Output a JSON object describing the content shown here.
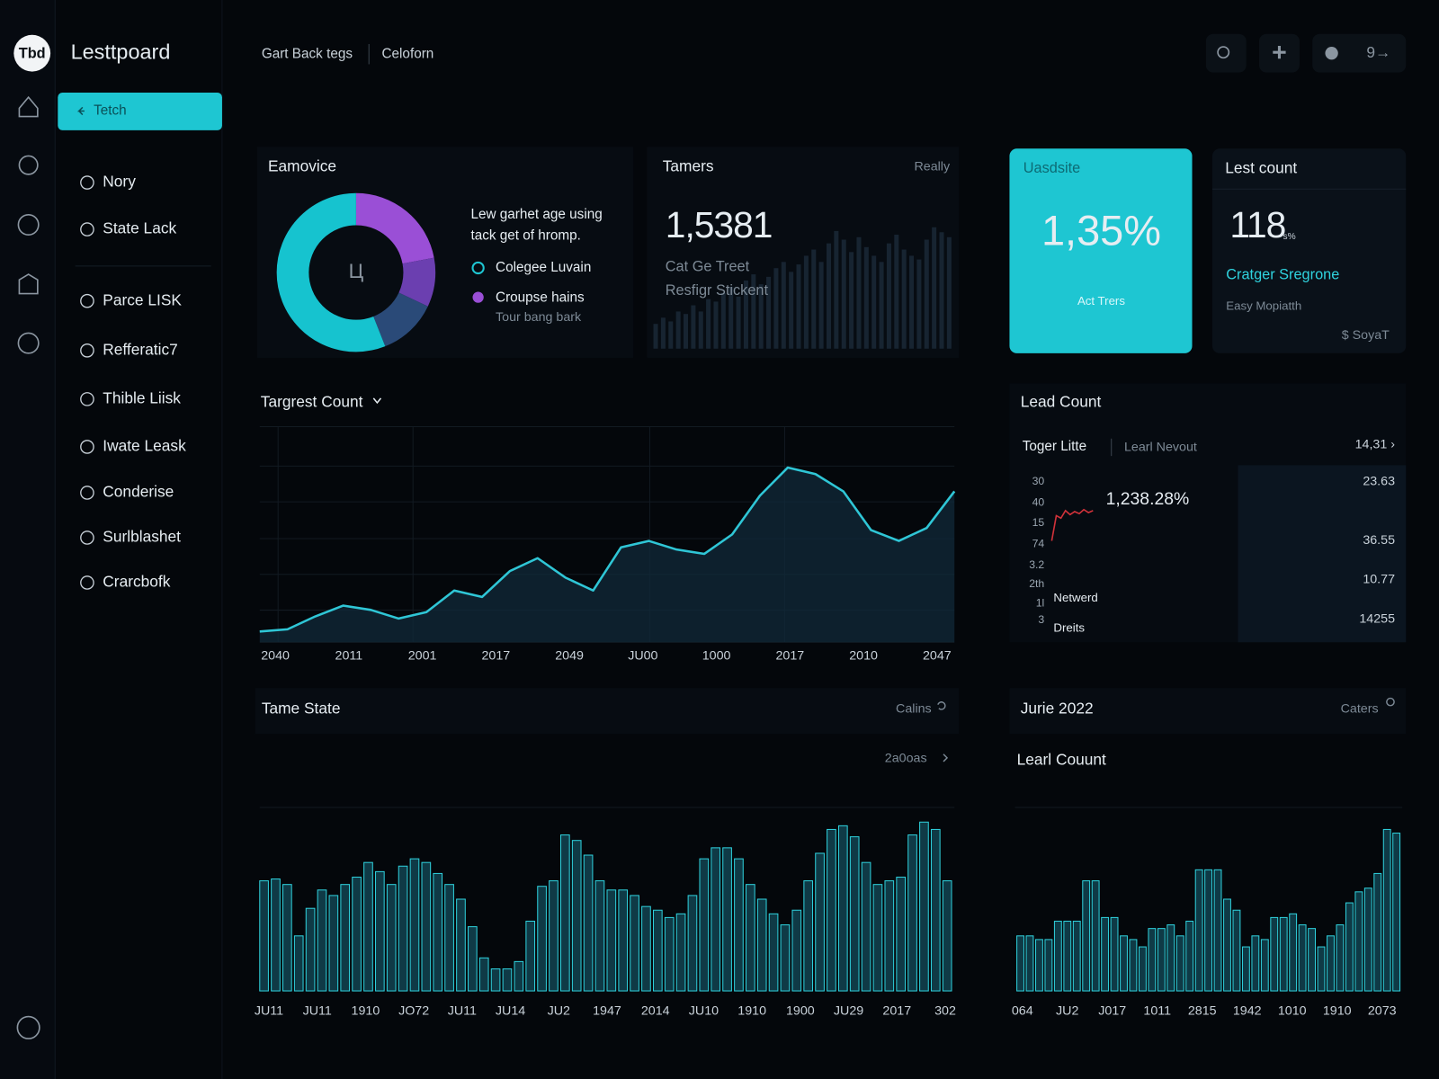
{
  "sidebar": {
    "logo": "Tbd",
    "brand": "Lesttpoard",
    "button": "Tetch",
    "nav": [
      "Nory",
      "State Lack",
      "Parce LISK",
      "Refferatic7",
      "Thible Liisk",
      "Iwate Leask",
      "Conderise",
      "Surlblashet",
      "Crarcbofk"
    ]
  },
  "header": {
    "breadcrumbs": [
      "Gart Back tegs",
      "Celoforn"
    ],
    "badge": "9→"
  },
  "donut_card": {
    "title": "Eamovice",
    "center": "Ц",
    "text": [
      "Lew garhet age using",
      "tack get of hromp."
    ],
    "legend": [
      {
        "name": "Colegee Luvain",
        "color": "#1ec6d2"
      },
      {
        "name": "Croupse hains",
        "color": "#9a4fd6",
        "note": "Tour bang bark"
      }
    ],
    "chart": {
      "type": "pie",
      "values": [
        22,
        10,
        12,
        56
      ],
      "colors": [
        "#9a4fd6",
        "#6b3fb0",
        "#2a4a78",
        "#16c3cf"
      ]
    }
  },
  "tamers_card": {
    "title": "Tamers",
    "action": "Really",
    "value": "1,5381",
    "lines": [
      "Cat Ge Treet",
      "Resfigr Stickent"
    ],
    "chart": {
      "type": "bar",
      "ylim": [
        0,
        100
      ],
      "values": [
        20,
        25,
        22,
        30,
        28,
        35,
        30,
        40,
        38,
        45,
        50,
        42,
        55,
        60,
        52,
        58,
        65,
        70,
        62,
        68,
        75,
        80,
        70,
        85,
        95,
        88,
        78,
        90,
        82,
        75,
        70,
        85,
        92,
        80,
        75,
        72,
        88,
        98,
        94,
        90
      ]
    }
  },
  "usage_card": {
    "title": "Uasdsite",
    "value": "1,35%",
    "caption": "Act Trers"
  },
  "lest_card": {
    "title": "Lest count",
    "value": "118",
    "unit": "s%",
    "link": "Cratger Sregrone",
    "note": "Easy Mopiatth",
    "footer": "$ SoyaT"
  },
  "target_chart": {
    "type": "area",
    "title": "Targrest Count",
    "ylim": [
      0,
      100
    ],
    "values": [
      5,
      6,
      12,
      17,
      15,
      11,
      14,
      24,
      21,
      33,
      39,
      30,
      24,
      44,
      47,
      43,
      41,
      50,
      68,
      81,
      78,
      70,
      52,
      47,
      53,
      70
    ],
    "x_labels": [
      "2040",
      "2011",
      "2001",
      "2017",
      "2049",
      "JU00",
      "1000",
      "2017",
      "2010",
      "2047"
    ],
    "color": "#2fc6d6"
  },
  "lead_card": {
    "title": "Lead Count",
    "tabs": [
      "Toger Litte",
      "Learl Nevout"
    ],
    "range": "14,31 ›",
    "axis_labels": [
      "30",
      "40",
      "15",
      "74",
      "3.2",
      "2th",
      "1l",
      "3"
    ],
    "headline": "1,238.28%",
    "rows": [
      "Netwerd",
      "Dreits"
    ],
    "side_values": [
      "23.63",
      "36.55",
      "10.77",
      "14255"
    ],
    "spark": {
      "type": "line",
      "ylim": [
        0,
        100
      ],
      "values": [
        10,
        60,
        55,
        70,
        62,
        68,
        64,
        72,
        66,
        70
      ],
      "color": "#d0323a"
    }
  },
  "state_chart": {
    "type": "bar",
    "title": "Tame State",
    "action": "Calins",
    "filter": "2a0oas",
    "ylim": [
      0,
      100
    ],
    "color": "#2fd0dc",
    "values": [
      60,
      61,
      58,
      30,
      45,
      55,
      52,
      58,
      62,
      70,
      65,
      58,
      68,
      72,
      70,
      64,
      58,
      50,
      35,
      18,
      12,
      12,
      16,
      38,
      57,
      60,
      85,
      82,
      74,
      60,
      55,
      55,
      52,
      46,
      44,
      40,
      42,
      52,
      72,
      78,
      78,
      72,
      58,
      50,
      42,
      36,
      44,
      60,
      75,
      88,
      90,
      84,
      70,
      58,
      60,
      62,
      85,
      92,
      88,
      60
    ],
    "x_labels": [
      "JU11",
      "JU11",
      "1910",
      "JO72",
      "JU11",
      "JU14",
      "JU2",
      "1947",
      "2014",
      "JU10",
      "1910",
      "1900",
      "JU29",
      "2017",
      "302"
    ]
  },
  "june_chart": {
    "type": "bar",
    "header": "Jurie 2022",
    "action": "Caters",
    "title": "Learl Couunt",
    "ylim": [
      0,
      100
    ],
    "color": "#2fd0dc",
    "values": [
      30,
      30,
      28,
      28,
      38,
      38,
      38,
      60,
      60,
      40,
      40,
      30,
      28,
      24,
      34,
      34,
      36,
      30,
      38,
      66,
      66,
      66,
      50,
      44,
      24,
      30,
      28,
      40,
      40,
      42,
      36,
      34,
      24,
      30,
      36,
      48,
      54,
      56,
      64,
      88,
      86
    ],
    "x_labels": [
      "064",
      "JU2",
      "J017",
      "1011",
      "2815",
      "1942",
      "1010",
      "1910",
      "2073"
    ]
  }
}
